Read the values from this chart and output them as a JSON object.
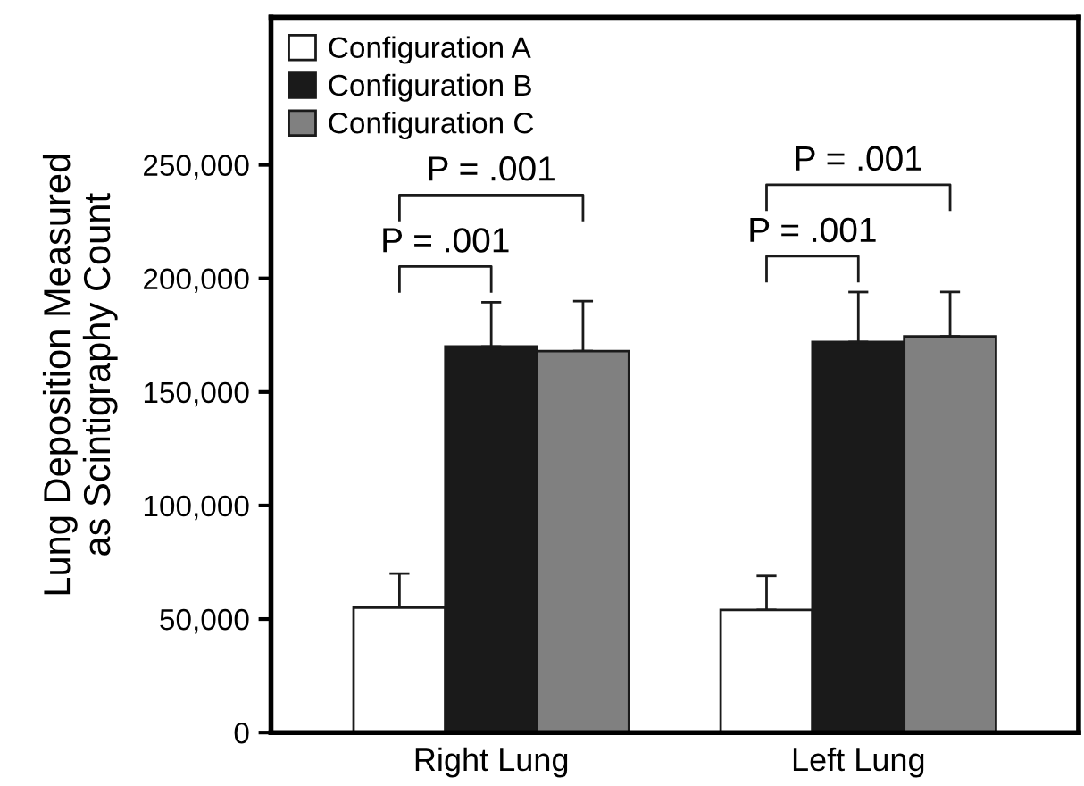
{
  "chart_data": {
    "type": "bar",
    "ylabel": "Lung Deposition Measured\nas Scintigraphy Count",
    "categories": [
      "Right Lung",
      "Left Lung"
    ],
    "series": [
      {
        "name": "Configuration A",
        "color": "#ffffff",
        "values": [
          55000,
          54000
        ],
        "errors": [
          15000,
          15000
        ]
      },
      {
        "name": "Configuration B",
        "color": "#1a1a1a",
        "values": [
          170000,
          172000
        ],
        "errors": [
          19500,
          22000
        ]
      },
      {
        "name": "Configuration C",
        "color": "#808080",
        "values": [
          168000,
          174500
        ],
        "errors": [
          22000,
          19500
        ]
      }
    ],
    "ylim": [
      0,
      315000
    ],
    "yticks": [
      {
        "value": 0,
        "label": "0"
      },
      {
        "value": 50000,
        "label": "50,000"
      },
      {
        "value": 100000,
        "label": "100,000"
      },
      {
        "value": 150000,
        "label": "150,000"
      },
      {
        "value": 200000,
        "label": "200,000"
      },
      {
        "value": 250000,
        "label": "250,000"
      }
    ],
    "annotations": [
      "P = .001",
      "P = .001",
      "P = .001",
      "P = .001"
    ],
    "legend": "top left",
    "grid": false
  }
}
